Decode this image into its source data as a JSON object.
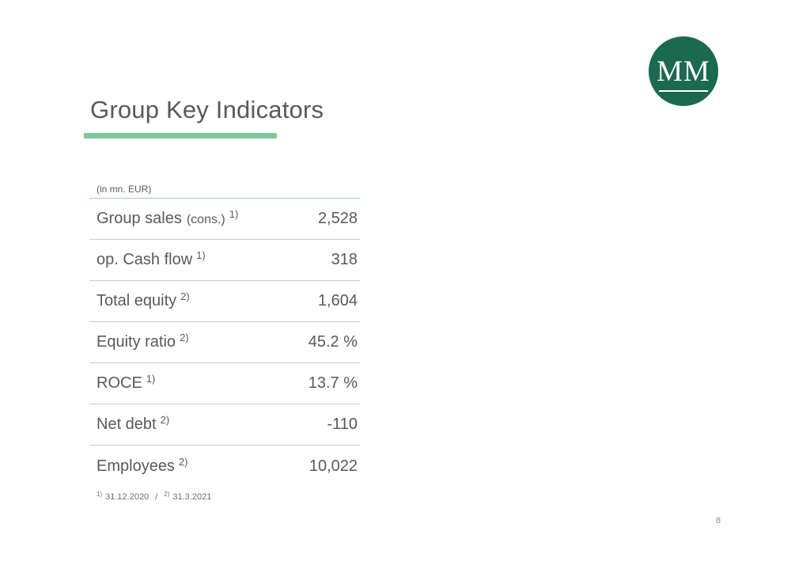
{
  "slide": {
    "title": "Group Key Indicators",
    "page_number": "8"
  },
  "logo": {
    "text": "MM",
    "background_color": "#1b6a50",
    "text_color": "#ffffff"
  },
  "table": {
    "unit_label": "(in mn. EUR)",
    "rows": [
      {
        "label": "Group sales",
        "label_small": "(cons.)",
        "sup": "1)",
        "value": "2,528"
      },
      {
        "label": "op. Cash flow",
        "label_small": "",
        "sup": "1)",
        "value": "318"
      },
      {
        "label": "Total equity",
        "label_small": "",
        "sup": "2)",
        "value": "1,604"
      },
      {
        "label": "Equity ratio",
        "label_small": "",
        "sup": "2)",
        "value": "45.2 %"
      },
      {
        "label": "ROCE",
        "label_small": "",
        "sup": "1)",
        "value": "13.7 %"
      },
      {
        "label": "Net debt",
        "label_small": "",
        "sup": "2)",
        "value": "-110"
      },
      {
        "label": "Employees",
        "label_small": "",
        "sup": "2)",
        "value": "10,022"
      }
    ],
    "footnote": {
      "sup1": "1)",
      "date1": "31.12.2020",
      "separator": "/",
      "sup2": "2)",
      "date2": "31.3.2021"
    }
  },
  "colors": {
    "accent_green": "#7ec79d",
    "logo_green": "#1b6a50",
    "text_grey": "#595959",
    "row_line_grey": "#c9c9c9",
    "header_line_green": "#a5cec0"
  }
}
